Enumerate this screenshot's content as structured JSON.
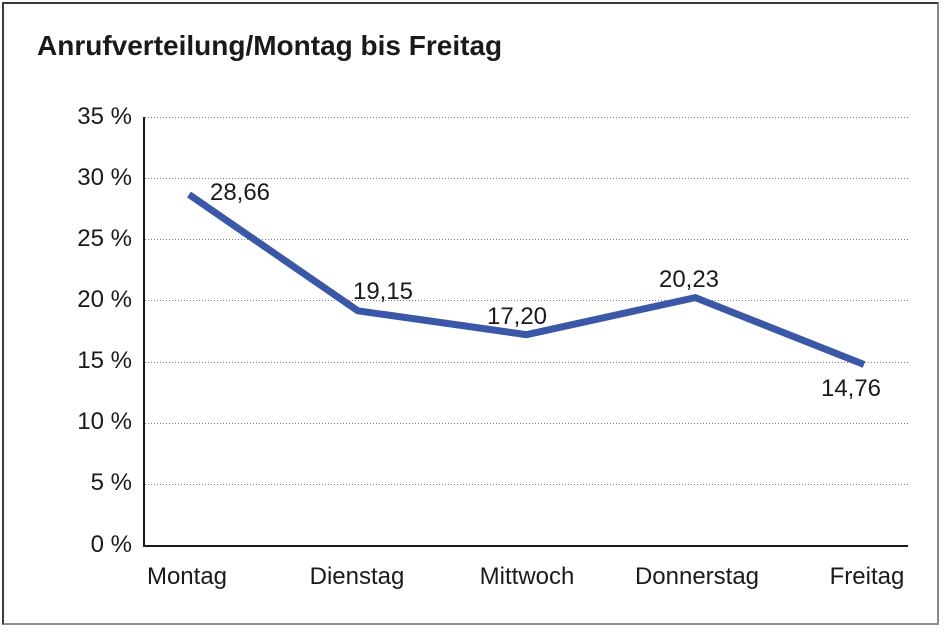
{
  "title": "Anrufverteilung/Montag bis Freitag",
  "chart_data": {
    "type": "line",
    "title": "Anrufverteilung/Montag bis Freitag",
    "categories": [
      "Montag",
      "Dienstag",
      "Mittwoch",
      "Donnerstag",
      "Freitag"
    ],
    "series": [
      {
        "name": "Anrufverteilung",
        "values": [
          28.66,
          19.15,
          17.2,
          20.23,
          14.76
        ]
      }
    ],
    "value_labels": [
      "28,66",
      "19,15",
      "17,20",
      "20,23",
      "14,76"
    ],
    "ytick_labels": [
      "35 %",
      "30 %",
      "25 %",
      "20 %",
      "15 %",
      "10 %",
      "5 %",
      "0 %"
    ],
    "ylim": [
      0,
      35
    ],
    "ytick_step": 5,
    "xlabel": "",
    "ylabel": "",
    "grid": "horizontal-dotted",
    "legend": "none",
    "line_color": "#3a57a8",
    "axis_color": "#1a1a1a",
    "grid_color": "#7d7d7d"
  }
}
